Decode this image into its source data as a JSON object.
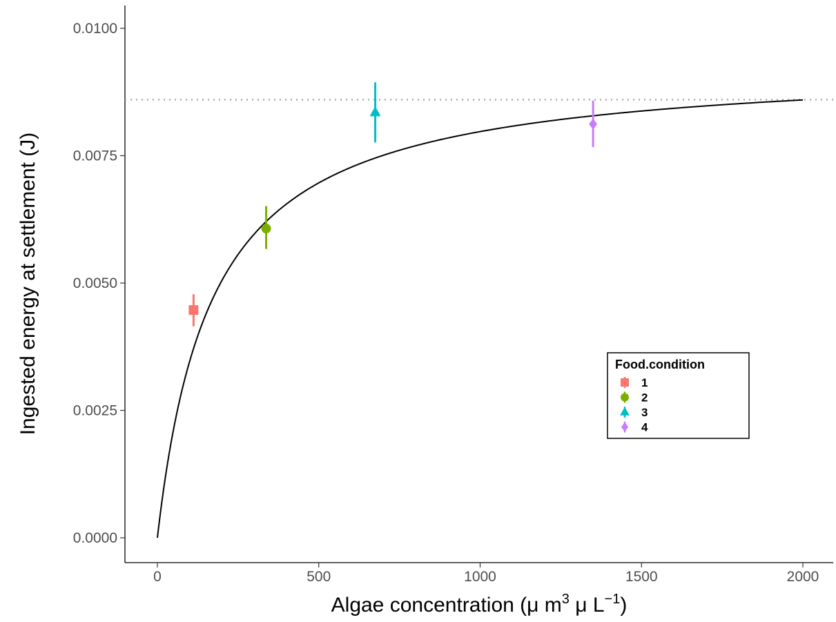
{
  "chart_data": {
    "type": "scatter",
    "xlabel": {
      "main": "Algae concentration (μ m",
      "sup1": "3",
      "mid": " μ L",
      "sup2": "−1",
      "end": ")"
    },
    "ylabel": "Ingested energy at settlement (J)",
    "xlim": [
      -100,
      2100
    ],
    "ylim": [
      -0.0005,
      0.0105
    ],
    "x_ticks": [
      0,
      500,
      1000,
      1500,
      2000
    ],
    "x_tick_labels": [
      "0",
      "500",
      "1000",
      "1500",
      "2000"
    ],
    "y_ticks": [
      0.0,
      0.0025,
      0.005,
      0.0075,
      0.01
    ],
    "y_tick_labels": [
      "0.0000",
      "0.0025",
      "0.0050",
      "0.0075",
      "0.0100"
    ],
    "grid": false,
    "legend": {
      "title": "Food.condition",
      "placement": "right-center"
    },
    "series": [
      {
        "name": "1",
        "color": "#F8766D",
        "shape": "square",
        "x": 112,
        "y": 0.00447,
        "ymin": 0.00415,
        "ymax": 0.00478
      },
      {
        "name": "2",
        "color": "#7CAE00",
        "shape": "circle",
        "x": 337,
        "y": 0.00607,
        "ymin": 0.00567,
        "ymax": 0.00651
      },
      {
        "name": "3",
        "color": "#00BFC4",
        "shape": "triangle",
        "x": 675,
        "y": 0.00835,
        "ymin": 0.00776,
        "ymax": 0.00894
      },
      {
        "name": "4",
        "color": "#C77CFF",
        "shape": "diamond",
        "x": 1350,
        "y": 0.00812,
        "ymin": 0.00767,
        "ymax": 0.00858
      }
    ],
    "fit_curve": {
      "color": "#000000",
      "form": "y = a*x/(b+x)",
      "a": 0.00932,
      "b": 169,
      "x_start": 0,
      "x_end": 2000
    },
    "reference_line": {
      "y": 0.0086,
      "style": "dotted",
      "color": "#aaaaaa"
    }
  }
}
